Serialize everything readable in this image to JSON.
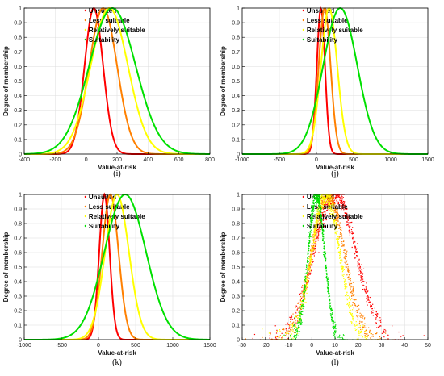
{
  "colors": {
    "unsuited": "#ff0000",
    "less_suitable": "#ff8000",
    "relatively_suitable": "#ffff00",
    "suitability": "#00e000"
  },
  "chart_data": [
    {
      "id": "i",
      "type": "line",
      "panel_label": "(i)",
      "xlabel": "Value-at-risk",
      "ylabel": "Degree of membership",
      "xlim": [
        -400,
        800
      ],
      "ylim": [
        0,
        1
      ],
      "xticks": [
        -400,
        -200,
        0,
        200,
        400,
        600,
        800
      ],
      "yticks": [
        0,
        0.1,
        0.2,
        0.3,
        0.4,
        0.5,
        0.6,
        0.7,
        0.8,
        0.9,
        1
      ],
      "grid": true,
      "legend_position": "top-right",
      "series": [
        {
          "name": "Unsuited",
          "color_key": "unsuited",
          "mean": 50,
          "sd": 60
        },
        {
          "name": "Less suitable",
          "color_key": "less_suitable",
          "mean": 110,
          "sd": 90
        },
        {
          "name": "Relatively suitable",
          "color_key": "relatively_suitable",
          "mean": 150,
          "sd": 120
        },
        {
          "name": "Suitability",
          "color_key": "suitability",
          "mean": 170,
          "sd": 150
        }
      ]
    },
    {
      "id": "j",
      "type": "line",
      "panel_label": "(j)",
      "xlabel": "Value-at-risk",
      "ylabel": "Degree of membership",
      "xlim": [
        -1000,
        1500
      ],
      "ylim": [
        0,
        1
      ],
      "xticks": [
        -1000,
        -500,
        0,
        500,
        1000,
        1500
      ],
      "yticks": [
        0,
        0.1,
        0.2,
        0.3,
        0.4,
        0.5,
        0.6,
        0.7,
        0.8,
        0.9,
        1
      ],
      "grid": true,
      "legend_position": "top-right",
      "series": [
        {
          "name": "Unsuited",
          "color_key": "unsuited",
          "mean": 60,
          "sd": 55
        },
        {
          "name": "Less suitable",
          "color_key": "less_suitable",
          "mean": 110,
          "sd": 80
        },
        {
          "name": "Relatively suitable",
          "color_key": "relatively_suitable",
          "mean": 170,
          "sd": 110
        },
        {
          "name": "Suitability",
          "color_key": "suitability",
          "mean": 320,
          "sd": 230
        }
      ]
    },
    {
      "id": "k",
      "type": "line",
      "panel_label": "(k)",
      "xlabel": "Value-at-risk",
      "ylabel": "Degree of membership",
      "xlim": [
        -1000,
        1500
      ],
      "ylim": [
        0,
        1
      ],
      "xticks": [
        -1000,
        -500,
        0,
        500,
        1000,
        1500
      ],
      "yticks": [
        0,
        0.1,
        0.2,
        0.3,
        0.4,
        0.5,
        0.6,
        0.7,
        0.8,
        0.9,
        1
      ],
      "grid": true,
      "legend_position": "top-right",
      "series": [
        {
          "name": "Unsuited",
          "color_key": "unsuited",
          "mean": 80,
          "sd": 70
        },
        {
          "name": "Less suitable",
          "color_key": "less_suitable",
          "mean": 160,
          "sd": 110
        },
        {
          "name": "Relatively suitable",
          "color_key": "relatively_suitable",
          "mean": 250,
          "sd": 160
        },
        {
          "name": "Suitability",
          "color_key": "suitability",
          "mean": 360,
          "sd": 280
        }
      ]
    },
    {
      "id": "l",
      "type": "scatter",
      "panel_label": "(l)",
      "xlabel": "Value-at-risk",
      "ylabel": "Degree of membership",
      "xlim": [
        -30,
        50
      ],
      "ylim": [
        0,
        1
      ],
      "xticks": [
        -30,
        -20,
        -10,
        0,
        10,
        20,
        30,
        40,
        50
      ],
      "yticks": [
        0,
        0.1,
        0.2,
        0.3,
        0.4,
        0.5,
        0.6,
        0.7,
        0.8,
        0.9,
        1
      ],
      "grid": true,
      "legend_position": "top-right",
      "series": [
        {
          "name": "Unsuited",
          "color_key": "unsuited",
          "mean": 10,
          "sd": 9
        },
        {
          "name": "Less suitable",
          "color_key": "less_suitable",
          "mean": 7,
          "sd": 7
        },
        {
          "name": "Relatively suitable",
          "color_key": "relatively_suitable",
          "mean": 6,
          "sd": 6
        },
        {
          "name": "Suitability",
          "color_key": "suitability",
          "mean": 2,
          "sd": 3.5
        }
      ]
    }
  ]
}
